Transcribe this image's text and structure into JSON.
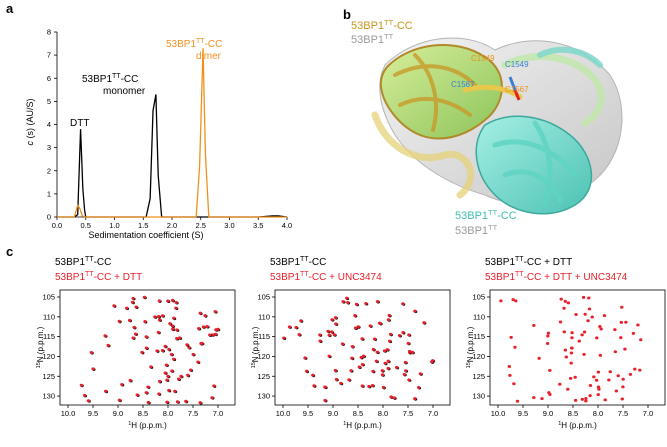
{
  "panels": {
    "a": "a",
    "b": "b",
    "c": "c"
  },
  "panel_a": {
    "ylabel_italic": "c",
    "ylabel_rest": " (s) (AU/S)",
    "xlabel": "Sedimentation coefficient (S)",
    "annotations": {
      "dtt": "DTT",
      "monomer_line1_base": "53BP1",
      "monomer_line1_sup": "TT",
      "monomer_line1_tail": "-CC",
      "monomer_line2": "monomer",
      "dimer_line1_base": "53BP1",
      "dimer_line1_sup": "TT",
      "dimer_line1_tail": "-CC",
      "dimer_line2": "dimer"
    }
  },
  "chart_data": {
    "type": "line",
    "xlabel": "Sedimentation coefficient (S)",
    "ylabel": "c (s) (AU/S)",
    "xlim": [
      0.0,
      4.0
    ],
    "ylim": [
      0,
      8
    ],
    "xticks": [
      "0.0",
      "0.5",
      "1.0",
      "1.5",
      "2.0",
      "2.5",
      "3.0",
      "3.5",
      "4.0"
    ],
    "yticks": [
      "0",
      "1",
      "2",
      "3",
      "4",
      "5",
      "6",
      "7",
      "8"
    ],
    "series": [
      {
        "color": "#000000",
        "x": [
          0.0,
          0.3,
          0.36,
          0.41,
          0.45,
          0.48,
          0.5,
          0.56,
          0.65,
          1.0,
          1.55,
          1.62,
          1.67,
          1.72,
          1.76,
          1.82,
          2.0,
          3.0,
          3.5,
          3.75,
          3.85,
          4.0
        ],
        "y": [
          0,
          0,
          0.1,
          3.8,
          1.2,
          0.3,
          0,
          0,
          0,
          0,
          0,
          0.8,
          4.6,
          5.3,
          1.8,
          0,
          0,
          0,
          0,
          0.05,
          0.05,
          0
        ]
      },
      {
        "color": "#f0901e",
        "x": [
          0.0,
          0.3,
          0.36,
          0.4,
          0.44,
          0.5,
          1.0,
          2.0,
          2.42,
          2.48,
          2.54,
          2.58,
          2.64,
          3.0,
          4.0
        ],
        "y": [
          0,
          0,
          0.5,
          0.35,
          0.05,
          0,
          0,
          0,
          0,
          2.2,
          7.3,
          2.8,
          0,
          0,
          0
        ]
      }
    ]
  },
  "panel_b": {
    "top_label1_base": "53BP1",
    "top_label1_sup": "TT",
    "top_label1_tail": "-CC",
    "top_label2_base": "53BP1",
    "top_label2_sup": "TT",
    "bottom_label1_base": "53BP1",
    "bottom_label1_sup": "TT",
    "bottom_label1_tail": "-CC",
    "bottom_label2_base": "53BP1",
    "bottom_label2_sup": "TT",
    "residues": {
      "c1549_orange": "C1549",
      "c1567_blue": "C1567",
      "c1549_blue": "C1549",
      "c1567_orange": "C1567"
    }
  },
  "panel_c": {
    "spectra": [
      {
        "title_black_base": "53BP1",
        "title_black_sup": "TT",
        "title_black_tail": "-CC",
        "title_red_base": "53BP1",
        "title_red_sup": "TT",
        "title_red_tail": "-CC + DTT"
      },
      {
        "title_black_base": "53BP1",
        "title_black_sup": "TT",
        "title_black_tail": "-CC",
        "title_red_base": "53BP1",
        "title_red_sup": "TT",
        "title_red_tail": "-CC + UNC3474"
      },
      {
        "title_black_base": "53BP1",
        "title_black_sup": "TT",
        "title_black_tail": "-CC + DTT",
        "title_red_base": "53BP1",
        "title_red_sup": "TT",
        "title_red_tail": "-CC + DTT + UNC3474"
      }
    ],
    "xticks": [
      "10.0",
      "9.5",
      "9.0",
      "8.5",
      "8.0",
      "7.5",
      "7.0"
    ],
    "yticks": [
      "105",
      "110",
      "115",
      "120",
      "125",
      "130"
    ],
    "xlabel_sup": "1",
    "xlabel_rest": "H (p.p.m.)",
    "ylabel_sup": "15",
    "ylabel_rest": "N (p.p.m.)"
  }
}
